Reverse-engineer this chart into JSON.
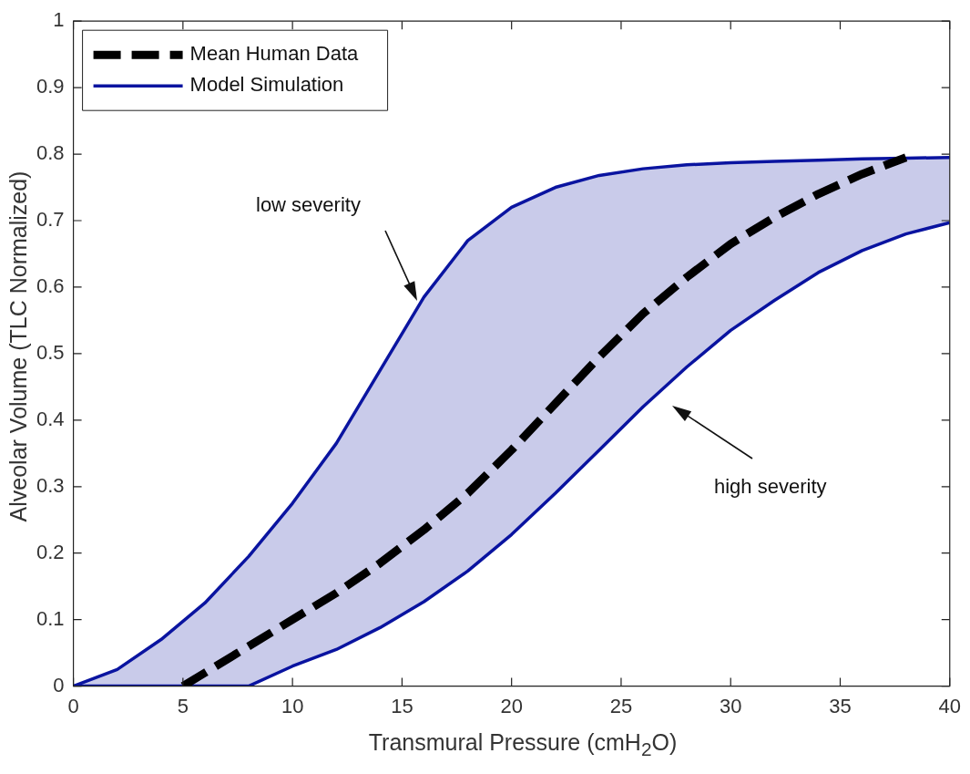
{
  "chart_data": {
    "type": "line",
    "xlabel": "Transmural Pressure (cmH$_{2}$O)",
    "ylabel": "Alveolar Volume (TLC Normalized)",
    "xlim": [
      0,
      40
    ],
    "xticks": [
      0,
      5,
      10,
      15,
      20,
      25,
      30,
      35,
      40
    ],
    "ylim": [
      0,
      1
    ],
    "yticks": [
      0,
      0.1,
      0.2,
      0.3,
      0.4,
      0.5,
      0.6,
      0.7,
      0.8,
      0.9,
      1
    ],
    "grid": false,
    "legend": "top left",
    "marker": "none",
    "series": [
      {
        "name": "Mean Human Data",
        "color": "#000000",
        "line_style": "dashed",
        "x": [
          5,
          6,
          8,
          10,
          12,
          14,
          16,
          18,
          20,
          22,
          24,
          26,
          28,
          30,
          32,
          34,
          36,
          38
        ],
        "values": [
          0,
          0.02,
          0.06,
          0.1,
          0.14,
          0.185,
          0.235,
          0.29,
          0.355,
          0.425,
          0.495,
          0.56,
          0.615,
          0.665,
          0.705,
          0.74,
          0.77,
          0.795
        ]
      },
      {
        "name": "Model Simulation",
        "color": "#0a14a0",
        "x": [
          0,
          2,
          4,
          6,
          8,
          10,
          12,
          14,
          16,
          18,
          20,
          22,
          24,
          26,
          28,
          30,
          32,
          34,
          36,
          38,
          40
        ],
        "values": [
          0,
          0.025,
          0.07,
          0.125,
          0.195,
          0.275,
          0.365,
          0.475,
          0.585,
          0.67,
          0.72,
          0.75,
          0.768,
          0.778,
          0.784,
          0.787,
          0.789,
          0.791,
          0.793,
          0.794,
          0.795
        ],
        "upper": [
          0,
          0.025,
          0.07,
          0.125,
          0.195,
          0.275,
          0.365,
          0.475,
          0.585,
          0.67,
          0.72,
          0.75,
          0.768,
          0.778,
          0.784,
          0.787,
          0.789,
          0.791,
          0.793,
          0.794,
          0.795
        ],
        "lower": [
          0,
          0,
          0,
          0,
          0,
          0.03,
          0.055,
          0.088,
          0.127,
          0.173,
          0.228,
          0.29,
          0.355,
          0.42,
          0.48,
          0.535,
          0.58,
          0.622,
          0.655,
          0.68,
          0.697
        ]
      },
      {
        "color": "#0a14a0",
        "x": [
          0,
          8,
          10,
          12,
          14,
          16,
          18,
          20,
          22,
          24,
          26,
          28,
          30,
          32,
          34,
          36,
          38,
          40
        ],
        "values": [
          0,
          0,
          0.03,
          0.055,
          0.088,
          0.127,
          0.173,
          0.228,
          0.29,
          0.355,
          0.42,
          0.48,
          0.535,
          0.58,
          0.622,
          0.655,
          0.68,
          0.697
        ]
      }
    ],
    "annotations": [
      "low severity",
      "high severity"
    ]
  }
}
